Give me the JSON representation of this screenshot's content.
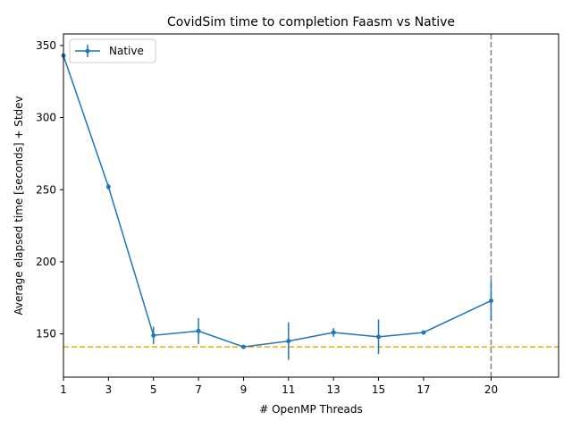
{
  "chart_data": {
    "type": "line",
    "title": "CovidSim time to completion Faasm vs Native",
    "xlabel": "# OpenMP Threads",
    "ylabel": "Average elapsed time [seconds] + Stdev",
    "xlim": [
      1,
      23
    ],
    "ylim": [
      120,
      358
    ],
    "x_ticks": [
      1,
      3,
      5,
      7,
      9,
      11,
      13,
      15,
      17,
      20
    ],
    "y_ticks": [
      150,
      200,
      250,
      300,
      350
    ],
    "legend_position": "upper-left",
    "grid": false,
    "series": [
      {
        "name": "Native",
        "color": "#1f77b4",
        "x": [
          1,
          3,
          5,
          7,
          9,
          11,
          13,
          15,
          17,
          20
        ],
        "y": [
          343,
          252,
          149,
          152,
          141,
          145,
          151,
          148,
          151,
          173
        ],
        "stdev": [
          1,
          2,
          6,
          9,
          1,
          13,
          3,
          12,
          1,
          14
        ]
      }
    ],
    "reference_lines": [
      {
        "orientation": "horizontal",
        "value": 141,
        "color": "#ffa500",
        "style": "dashed"
      },
      {
        "orientation": "vertical",
        "value": 20,
        "color": "#808080",
        "style": "dashed"
      }
    ]
  }
}
